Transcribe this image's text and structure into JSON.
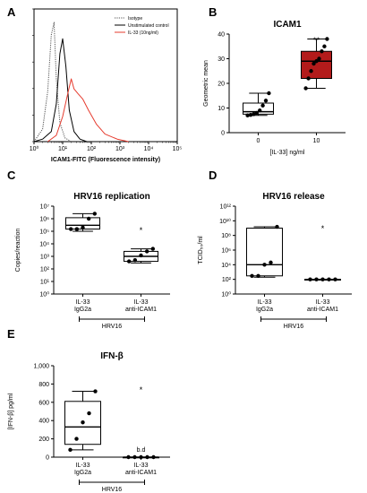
{
  "panels": {
    "A": {
      "letter": "A"
    },
    "B": {
      "letter": "B"
    },
    "C": {
      "letter": "C"
    },
    "D": {
      "letter": "D"
    },
    "E": {
      "letter": "E"
    }
  },
  "chart_data": [
    {
      "panel": "A",
      "type": "line",
      "xlabel": "ICAM1-FITC (Fluorescence intensity)",
      "ylabel": "",
      "xscale": "log",
      "x_ticks": [
        "10⁰",
        "10¹",
        "10²",
        "10³",
        "10⁴",
        "10⁵"
      ],
      "legend_placement": "top-right",
      "series": [
        {
          "name": "Isotype",
          "color": "#555555",
          "dash": "dotted",
          "x": [
            1,
            2,
            3,
            4,
            5,
            6,
            8,
            12,
            20
          ],
          "y": [
            0,
            10,
            40,
            85,
            95,
            50,
            15,
            3,
            0
          ]
        },
        {
          "name": "Unstimulated control",
          "color": "#000000",
          "dash": "solid",
          "x": [
            1,
            2,
            4,
            6,
            8,
            10,
            13,
            17,
            25,
            40,
            70
          ],
          "y": [
            0,
            2,
            8,
            30,
            70,
            82,
            60,
            25,
            8,
            2,
            0
          ]
        },
        {
          "name": "IL-33 (10ng/ml)",
          "color": "#e63b2e",
          "dash": "solid",
          "x": [
            3,
            6,
            10,
            15,
            20,
            25,
            35,
            50,
            80,
            150,
            300,
            800,
            2000
          ],
          "y": [
            0,
            5,
            20,
            38,
            50,
            42,
            38,
            34,
            25,
            14,
            6,
            2,
            0
          ]
        }
      ]
    },
    {
      "panel": "B",
      "type": "box",
      "title": "ICAM1",
      "xlabel": "[IL-33] ng/ml",
      "ylabel": "Geometric mean",
      "ylim": [
        0,
        40
      ],
      "y_ticks": [
        0,
        10,
        20,
        30,
        40
      ],
      "categories": [
        "0",
        "10"
      ],
      "boxes": [
        {
          "category": "0",
          "min": 7,
          "q1": 7.5,
          "median": 8.5,
          "q3": 12,
          "max": 16,
          "points": [
            7,
            7.2,
            7.5,
            8,
            9,
            11,
            13,
            16
          ],
          "fill": "#ffffff"
        },
        {
          "category": "10",
          "min": 18,
          "q1": 22,
          "median": 29,
          "q3": 33,
          "max": 38,
          "points": [
            18,
            22,
            25,
            28,
            29,
            30,
            33,
            35,
            38
          ],
          "fill": "#b31b1b"
        }
      ],
      "annotations": [
        {
          "category": "10",
          "text": "**"
        }
      ]
    },
    {
      "panel": "C",
      "type": "box",
      "title": "HRV16 replication",
      "xlabel": "",
      "ylabel": "Copies/reaction",
      "yscale": "log",
      "ylim": [
        1,
        10000000
      ],
      "y_ticks": [
        "10⁰",
        "10¹",
        "10²",
        "10³",
        "10⁴",
        "10⁵",
        "10⁶",
        "10⁷"
      ],
      "categories": [
        "IL-33\nIgG2a",
        "IL-33\nanti-ICAM1"
      ],
      "group_label": "HRV16",
      "boxes": [
        {
          "category": "IL-33 IgG2a",
          "min": 100000,
          "q1": 150000,
          "median": 300000,
          "q3": 1200000,
          "max": 2500000,
          "points": [
            150000,
            150000,
            200000,
            1000000,
            2500000
          ],
          "fill": "#ffffff"
        },
        {
          "category": "IL-33 anti-ICAM1",
          "min": 300,
          "q1": 400,
          "median": 1000,
          "q3": 2500,
          "max": 4000,
          "points": [
            400,
            500,
            1200,
            2500,
            4000
          ],
          "fill": "#ffffff"
        }
      ],
      "annotations": [
        {
          "category": "IL-33 anti-ICAM1",
          "text": "*"
        }
      ]
    },
    {
      "panel": "D",
      "type": "box",
      "title": "HRV16 release",
      "xlabel": "",
      "ylabel": "TCID₅₀/ml",
      "yscale": "log",
      "ylim": [
        1,
        1000000000000
      ],
      "y_ticks": [
        "10⁰",
        "10²",
        "10⁴",
        "10⁶",
        "10⁸",
        "10¹⁰",
        "10¹²"
      ],
      "categories": [
        "IL-33\nIgG2a",
        "IL-33\nanti-ICAM1"
      ],
      "group_label": "HRV16",
      "boxes": [
        {
          "category": "IL-33 IgG2a",
          "min": 200,
          "q1": 300,
          "median": 10000,
          "q3": 1000000000,
          "max": 1500000000,
          "points": [
            300,
            300,
            10000,
            20000,
            1500000000
          ],
          "fill": "#ffffff"
        },
        {
          "category": "IL-33 anti-ICAM1",
          "min": 100,
          "q1": 100,
          "median": 100,
          "q3": 100,
          "max": 100,
          "points": [
            100,
            100,
            100,
            100,
            100
          ],
          "fill": "#ffffff"
        }
      ],
      "annotations": [
        {
          "category": "IL-33 anti-ICAM1",
          "text": "*"
        }
      ]
    },
    {
      "panel": "E",
      "type": "box",
      "title": "IFN-β",
      "xlabel": "",
      "ylabel": "[IFN-β] pg/ml",
      "ylim": [
        0,
        1000
      ],
      "y_ticks": [
        "0",
        "200",
        "400",
        "600",
        "800",
        "1,000"
      ],
      "categories": [
        "IL-33\nIgG2a",
        "IL-33\nanti-ICAM1"
      ],
      "group_label": "HRV16",
      "boxes": [
        {
          "category": "IL-33 IgG2a",
          "min": 80,
          "q1": 140,
          "median": 330,
          "q3": 610,
          "max": 720,
          "points": [
            80,
            200,
            380,
            480,
            720
          ],
          "fill": "#ffffff"
        },
        {
          "category": "IL-33 anti-ICAM1",
          "min": 0,
          "q1": 0,
          "median": 0,
          "q3": 0,
          "max": 0,
          "points": [
            0,
            0,
            0,
            0,
            0
          ],
          "fill": "#ffffff"
        }
      ],
      "annotations": [
        {
          "category": "IL-33 anti-ICAM1",
          "text": "*"
        },
        {
          "category": "IL-33 anti-ICAM1",
          "text": "b.d"
        }
      ]
    }
  ]
}
